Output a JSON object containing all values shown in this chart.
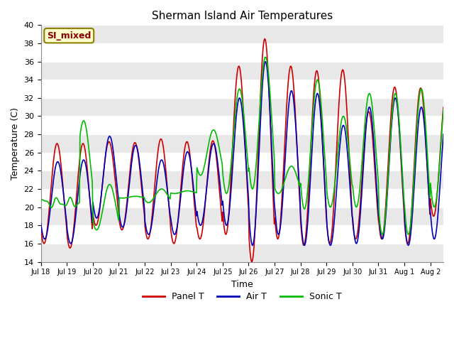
{
  "title": "Sherman Island Air Temperatures",
  "xlabel": "Time",
  "ylabel": "Temperature (C)",
  "ylim": [
    14,
    40
  ],
  "yticks": [
    14,
    16,
    18,
    20,
    22,
    24,
    26,
    28,
    30,
    32,
    34,
    36,
    38,
    40
  ],
  "annotation_text": "SI_mixed",
  "annotation_color": "#8B0000",
  "annotation_bg": "#FFFFCC",
  "annotation_border": "#8B8000",
  "bg_color": "#FFFFFF",
  "plot_bg": "#FFFFFF",
  "stripe_color": "#E8E8E8",
  "line_panel_color": "#CC0000",
  "line_air_color": "#0000BB",
  "line_sonic_color": "#00BB00",
  "line_width": 1.2,
  "xtick_labels": [
    "Jul 18",
    "Jul 19",
    "Jul 20",
    "Jul 21",
    "Jul 22",
    "Jul 23",
    "Jul 24",
    "Jul 25",
    "Jul 26",
    "Jul 27",
    "Jul 28",
    "Jul 29",
    "Jul 30",
    "Jul 31",
    "Aug 1",
    "Aug 2"
  ],
  "num_points": 720,
  "day_maxes_panel": [
    27,
    27,
    27.2,
    27.1,
    27.5,
    27.2,
    27.3,
    35.5,
    38.5,
    35.5,
    35.0,
    35.1,
    30.5,
    33.2,
    33.1,
    33.0
  ],
  "day_mins_panel": [
    16.0,
    15.5,
    18.0,
    17.5,
    16.5,
    16.0,
    16.5,
    17.0,
    14.0,
    16.5,
    15.8,
    16.0,
    16.5,
    16.5,
    16.0,
    19.0
  ],
  "day_maxes_air": [
    25.0,
    25.2,
    27.8,
    26.8,
    25.2,
    26.1,
    27.0,
    32.0,
    36.0,
    32.8,
    32.5,
    29.0,
    31.0,
    32.0,
    31.0,
    31.0
  ],
  "day_mins_air": [
    16.5,
    16.0,
    18.8,
    17.8,
    17.0,
    17.0,
    18.0,
    18.0,
    15.8,
    17.0,
    15.8,
    15.8,
    16.0,
    16.5,
    15.8,
    16.5
  ],
  "day_maxes_sonic": [
    20.8,
    29.5,
    22.5,
    21.2,
    22.0,
    21.8,
    28.5,
    33.0,
    36.5,
    24.5,
    34.0,
    30.0,
    32.5,
    32.5,
    33.0,
    33.5
  ],
  "day_mins_sonic": [
    20.2,
    20.5,
    17.5,
    21.0,
    20.5,
    21.5,
    23.5,
    21.5,
    22.0,
    21.5,
    19.8,
    20.0,
    20.0,
    17.0,
    17.0,
    20.0
  ],
  "sonic_flat_days": 1.5,
  "sonic_flat_val": 20.5
}
